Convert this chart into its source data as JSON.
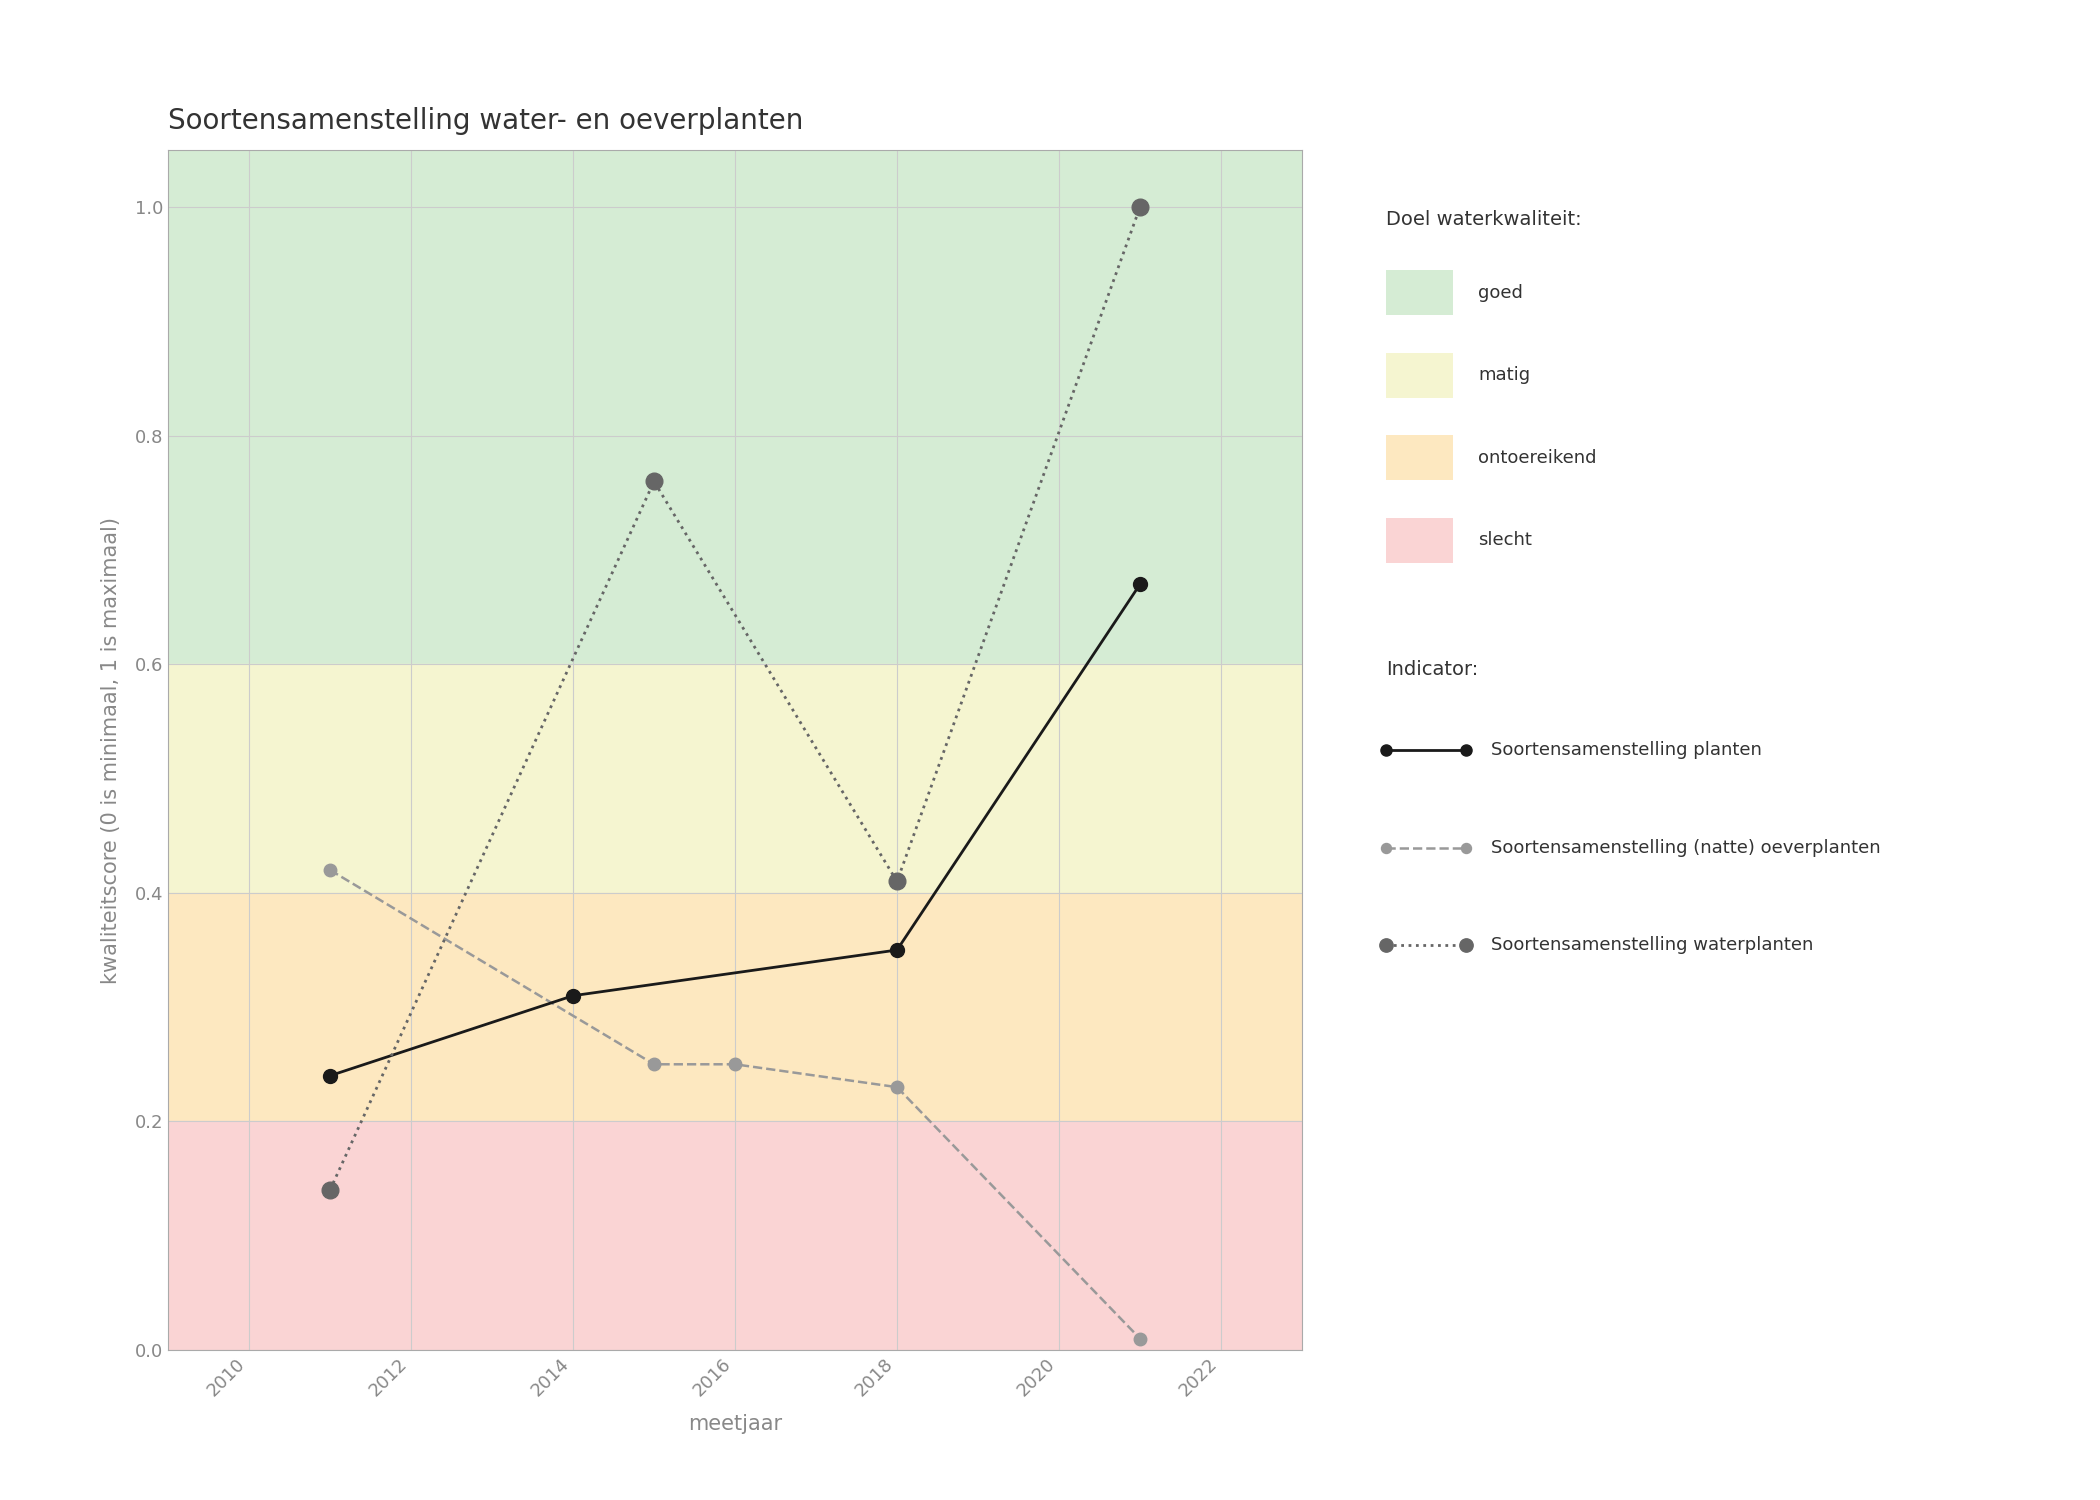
{
  "title": "Soortensamenstelling water- en oeverplanten",
  "xlabel": "meetjaar",
  "ylabel": "kwaliteitscore (0 is minimaal, 1 is maximaal)",
  "xlim": [
    2009,
    2023
  ],
  "ylim": [
    0.0,
    1.05
  ],
  "yticks": [
    0.0,
    0.2,
    0.4,
    0.6,
    0.8,
    1.0
  ],
  "xticks": [
    2010,
    2012,
    2014,
    2016,
    2018,
    2020,
    2022
  ],
  "bg_zones": [
    {
      "ymin": 0.6,
      "ymax": 1.05,
      "color": "#d5ecd4",
      "label": "goed"
    },
    {
      "ymin": 0.4,
      "ymax": 0.6,
      "color": "#f5f5d0",
      "label": "matig"
    },
    {
      "ymin": 0.2,
      "ymax": 0.4,
      "color": "#fde8c0",
      "label": "ontoereikend"
    },
    {
      "ymin": 0.0,
      "ymax": 0.2,
      "color": "#fad4d4",
      "label": "slecht"
    }
  ],
  "series": [
    {
      "name": "Soortensamenstelling planten",
      "x": [
        2011,
        2014,
        2018,
        2021
      ],
      "y": [
        0.24,
        0.31,
        0.35,
        0.67
      ],
      "color": "#1a1a1a",
      "linestyle": "solid",
      "linewidth": 2.0,
      "markersize": 10,
      "marker": "o",
      "zorder": 5
    },
    {
      "name": "Soortensamenstelling (natte) oeverplanten",
      "x": [
        2011,
        2015,
        2016,
        2018,
        2021
      ],
      "y": [
        0.42,
        0.25,
        0.25,
        0.23,
        0.01
      ],
      "color": "#999999",
      "linestyle": "dashed",
      "linewidth": 1.8,
      "markersize": 9,
      "marker": "o",
      "zorder": 4
    },
    {
      "name": "Soortensamenstelling waterplanten",
      "x": [
        2011,
        2015,
        2018,
        2021
      ],
      "y": [
        0.14,
        0.76,
        0.41,
        1.0
      ],
      "color": "#666666",
      "linestyle": "dotted",
      "linewidth": 2.0,
      "markersize": 12,
      "marker": "o",
      "zorder": 6
    }
  ],
  "legend_quality_title": "Doel waterkwaliteit:",
  "legend_indicator_title": "Indicator:",
  "grid_color": "#cccccc",
  "background_color": "#ffffff",
  "title_fontsize": 20,
  "label_fontsize": 15,
  "tick_fontsize": 13,
  "legend_fontsize": 13
}
